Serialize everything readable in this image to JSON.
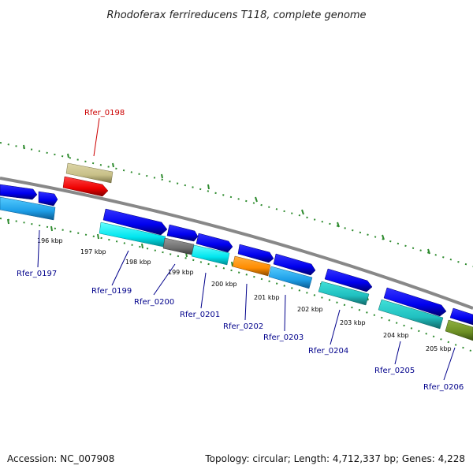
{
  "title": "Rhodoferax ferrireducens T118, complete genome",
  "footer": {
    "accession": "Accession: NC_007908",
    "summary": "Topology: circular; Length: 4,712,337 bp; Genes: 4,228"
  },
  "ruler": [
    "196 kbp",
    "197 kbp",
    "198 kbp",
    "199 kbp",
    "200 kbp",
    "201 kbp",
    "202 kbp",
    "203 kbp",
    "204 kbp",
    "205 kbp"
  ],
  "genes": [
    {
      "id": "Rfer_0197",
      "color": "#00008b"
    },
    {
      "id": "Rfer_0198",
      "color": "#cc0000"
    },
    {
      "id": "Rfer_0199",
      "color": "#00008b"
    },
    {
      "id": "Rfer_0200",
      "color": "#00008b"
    },
    {
      "id": "Rfer_0201",
      "color": "#00008b"
    },
    {
      "id": "Rfer_0202",
      "color": "#00008b"
    },
    {
      "id": "Rfer_0203",
      "color": "#00008b"
    },
    {
      "id": "Rfer_0204",
      "color": "#00008b"
    },
    {
      "id": "Rfer_0205",
      "color": "#00008b"
    },
    {
      "id": "Rfer_0206",
      "color": "#00008b"
    }
  ],
  "colors": {
    "backbone": "#888888",
    "tick": "#2e8b2e",
    "cds_blue": "#0000ee",
    "cds_cyan": "#00e5ee",
    "cds_skyblue": "#1e9fe8",
    "cds_teal": "#20c0c0",
    "cds_orange": "#ff8c00",
    "cds_gray": "#707070",
    "cds_red": "#ee0000",
    "cds_khaki": "#c8c088",
    "cds_olive": "#6b8e23"
  }
}
